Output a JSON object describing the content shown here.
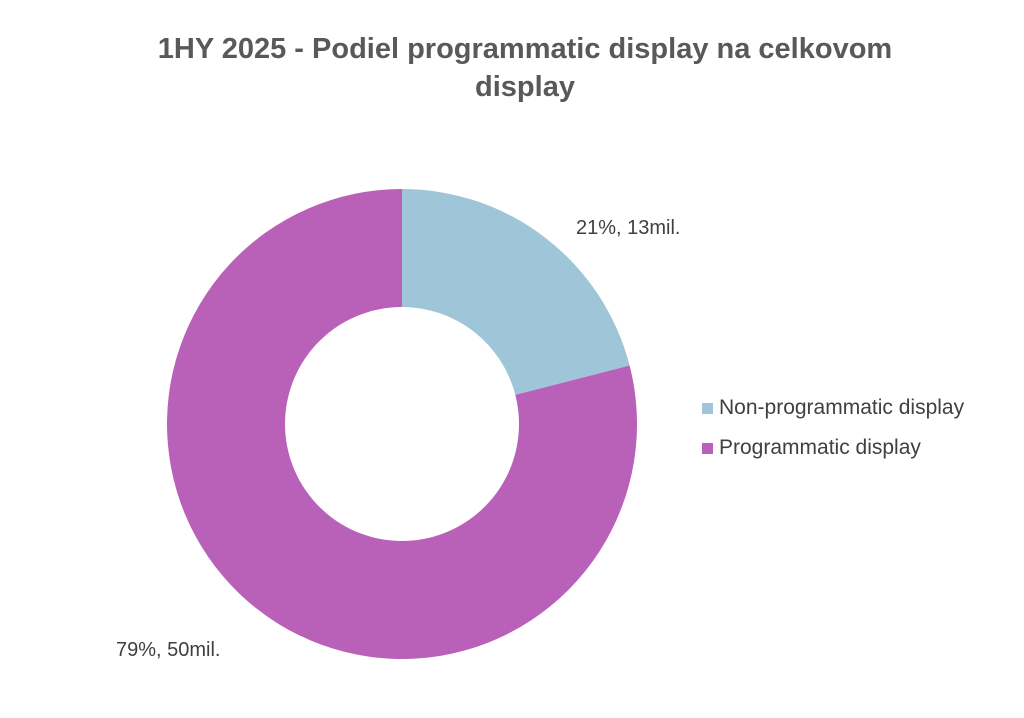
{
  "title_lines": [
    "1HY 2025 - Podiel programmatic display na celkovom",
    "display"
  ],
  "chart_data": {
    "type": "pie",
    "donut": true,
    "title": "1HY 2025 - Podiel programmatic display na celkovom display",
    "slices": [
      {
        "name": "Non-programmatic display",
        "percent": 21,
        "value": 13,
        "label": "21%, 13mil.",
        "color": "#9fc5d9"
      },
      {
        "name": "Programmatic display",
        "percent": 79,
        "value": 50,
        "label": "79%, 50mil.",
        "color": "#b960b8"
      }
    ],
    "legend_position": "right"
  }
}
